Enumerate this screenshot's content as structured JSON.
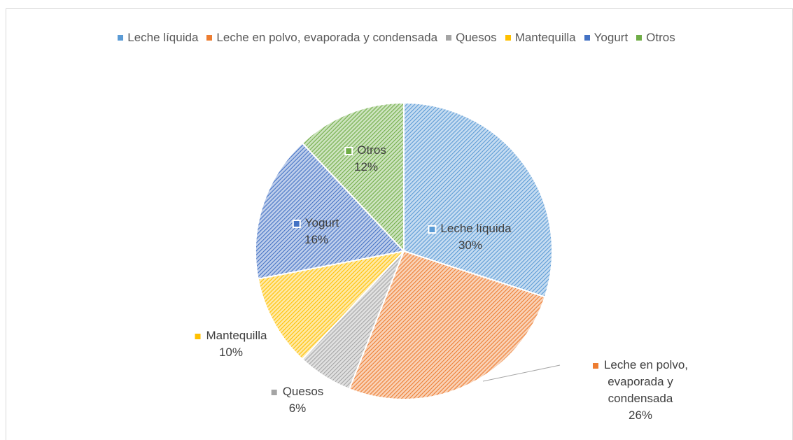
{
  "chart_data": {
    "type": "pie",
    "categories": [
      "Leche líquida",
      "Leche en polvo, evaporada y condensada",
      "Quesos",
      "Mantequilla",
      "Yogurt",
      "Otros"
    ],
    "values": [
      30,
      26,
      6,
      10,
      16,
      12
    ],
    "value_labels": [
      "30%",
      "26%",
      "6%",
      "10%",
      "16%",
      "12%"
    ],
    "colors": [
      "#5b9bd5",
      "#ed7d31",
      "#a5a5a5",
      "#ffc000",
      "#4472c4",
      "#70ad47"
    ],
    "legend": "top"
  }
}
